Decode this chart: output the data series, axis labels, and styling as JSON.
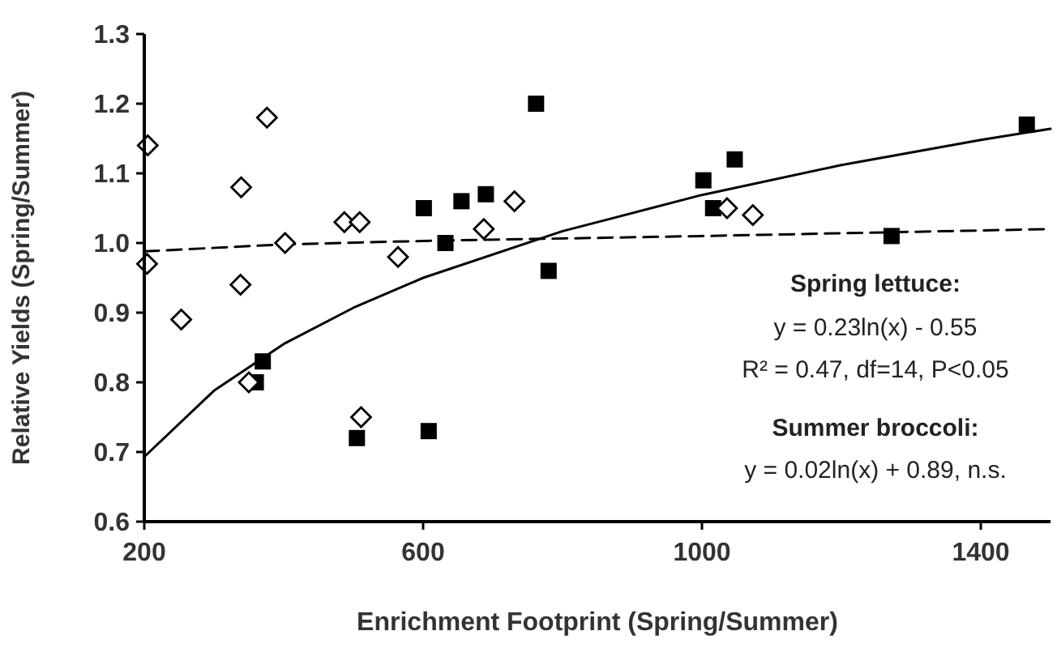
{
  "chart_data": {
    "type": "scatter",
    "xlabel": "Enrichment Footprint (Spring/Summer)",
    "ylabel": "Relative Yields (Spring/Summer)",
    "xlim": [
      200,
      1500
    ],
    "xticks": [
      200,
      600,
      1000,
      1400
    ],
    "ylim": [
      0.6,
      1.3
    ],
    "yticks": [
      0.6,
      0.7,
      0.8,
      0.9,
      {
        "value": 1.0,
        "label": "1.0"
      },
      1.1,
      1.2,
      1.3
    ],
    "grid": false,
    "series": [
      {
        "type": "line",
        "color": "#000000",
        "line_style": "solid",
        "marker": "none",
        "x": [
          200,
          300,
          400,
          500,
          600,
          800,
          1000,
          1200,
          1400,
          1500
        ],
        "values": [
          0.693,
          0.788,
          0.855,
          0.907,
          0.95,
          1.017,
          1.069,
          1.112,
          1.148,
          1.164
        ]
      },
      {
        "type": "line",
        "color": "#000000",
        "line_style": "dashed",
        "marker": "none",
        "x": [
          200,
          400,
          600,
          1000,
          1500
        ],
        "values": [
          0.988,
          0.998,
          1.003,
          1.01,
          1.02
        ]
      },
      {
        "color": "#000000",
        "marker": "square",
        "x": [
          370,
          360,
          505,
          608,
          601,
          632,
          655,
          690,
          762,
          780,
          1002,
          1047,
          1016,
          1272,
          1466
        ],
        "values": [
          0.83,
          0.8,
          0.72,
          0.73,
          1.05,
          1.0,
          1.06,
          1.07,
          1.2,
          0.96,
          1.09,
          1.12,
          1.05,
          1.01,
          1.17
        ]
      },
      {
        "color": "#000000",
        "marker": "diamond",
        "x": [
          205,
          204,
          253,
          339,
          338,
          376,
          350,
          402,
          487,
          509,
          511,
          564,
          687,
          731,
          1036,
          1073
        ],
        "values": [
          1.14,
          0.97,
          0.89,
          1.08,
          0.94,
          1.18,
          0.8,
          1.0,
          1.03,
          1.03,
          0.75,
          0.98,
          1.02,
          1.06,
          1.05,
          1.04
        ]
      }
    ],
    "annotations": [
      "Spring lettuce:",
      "y = 0.23ln(x) - 0.55",
      "R² = 0.47, df=14, P<0.05",
      "Summer broccoli:",
      "y = 0.02ln(x) + 0.89, n.s."
    ]
  }
}
